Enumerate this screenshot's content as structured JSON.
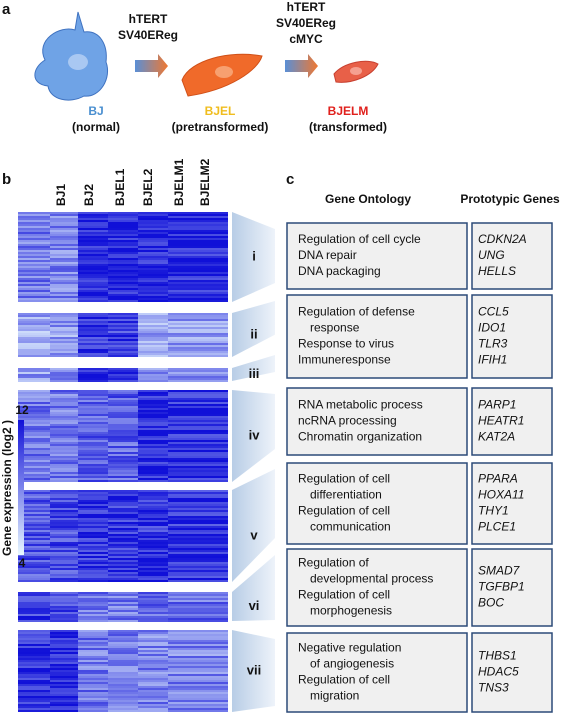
{
  "panel_labels": [
    "a",
    "b",
    "c"
  ],
  "panel_a": {
    "treatments": [
      [
        "hTERT",
        "SV40EReg"
      ],
      [
        "hTERT",
        "SV40EReg",
        "cMYC"
      ]
    ],
    "cells": [
      {
        "name": "BJ",
        "state": "(normal)",
        "color": "#4a8fd0"
      },
      {
        "name": "BJEL",
        "state": "(pretransformed)",
        "color": "#f0bd1e"
      },
      {
        "name": "BJELM",
        "state": "(transformed)",
        "color": "#e0201c"
      }
    ]
  },
  "panel_b": {
    "columns": [
      "BJ1",
      "BJ2",
      "BJEL1",
      "BJEL2",
      "BJELM1",
      "BJELM2"
    ],
    "clusters": [
      "i",
      "ii",
      "iii",
      "iv",
      "v",
      "vi",
      "vii"
    ],
    "colorbar": {
      "title": "Gene expression  (log2 )",
      "max": 12,
      "min": 4
    }
  },
  "panel_c": {
    "headers": [
      "Gene Ontology",
      "Prototypic Genes"
    ],
    "rows": [
      {
        "terms": [
          [
            "Regulation of cell cycle"
          ],
          [
            "DNA repair"
          ],
          [
            "DNA packaging"
          ]
        ],
        "genes": [
          "CDKN2A",
          "UNG",
          "HELLS"
        ]
      },
      {
        "terms": [
          [
            "Regulation of defense",
            "response"
          ],
          [
            "Response to virus"
          ],
          [
            "Immuneresponse"
          ]
        ],
        "genes": [
          "CCL5",
          "IDO1",
          "TLR3",
          "IFIH1"
        ]
      },
      {
        "terms": [
          [
            "RNA metabolic  process"
          ],
          [
            "ncRNA processing"
          ],
          [
            "Chromatin organization"
          ]
        ],
        "genes": [
          "PARP1",
          "HEATR1",
          "KAT2A"
        ]
      },
      {
        "terms": [
          [
            "Regulation of cell",
            "differentiation"
          ],
          [
            "Regulation of cell",
            "communication"
          ]
        ],
        "genes": [
          "PPARA",
          "HOXA11",
          "THY1",
          "PLCE1"
        ]
      },
      {
        "terms": [
          [
            "Regulation of",
            "developmental process"
          ],
          [
            "Regulation of cell",
            "morphogenesis"
          ]
        ],
        "genes": [
          "SMAD7",
          "TGFBP1",
          "BOC"
        ]
      },
      {
        "terms": [
          [
            "Negative regulation",
            "of angiogenesis"
          ],
          [
            "Regulation of cell",
            "migration"
          ]
        ],
        "genes": [
          "THBS1",
          "HDAC5",
          "TNS3"
        ]
      }
    ]
  }
}
